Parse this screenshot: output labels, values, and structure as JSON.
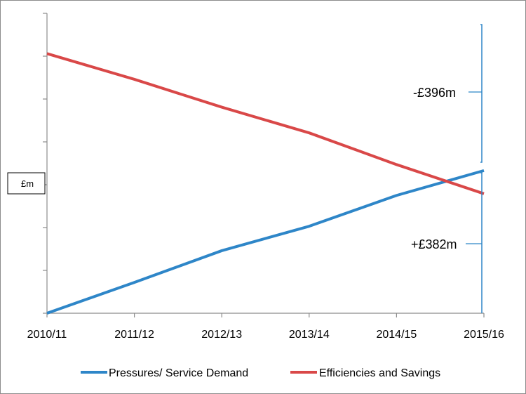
{
  "chart_data": {
    "type": "line",
    "title": "",
    "xlabel": "",
    "ylabel": "£m",
    "categories": [
      "2010/11",
      "2011/12",
      "2012/13",
      "2013/14",
      "2014/15",
      "2015/16"
    ],
    "ylim": [
      0,
      700
    ],
    "grid": false,
    "series": [
      {
        "name": "Pressures/ Service Demand",
        "color": "#2e86c8",
        "values": [
          0,
          72,
          146,
          203,
          275,
          333
        ]
      },
      {
        "name": "Efficiencies and Savings",
        "color": "#d94848",
        "values": [
          606,
          546,
          481,
          421,
          347,
          279
        ]
      }
    ],
    "annotations": [
      {
        "label": "-£396m",
        "color": "#2e86c8"
      },
      {
        "label": "+£382m",
        "color": "#2e86c8"
      }
    ],
    "legend_position": "bottom"
  }
}
